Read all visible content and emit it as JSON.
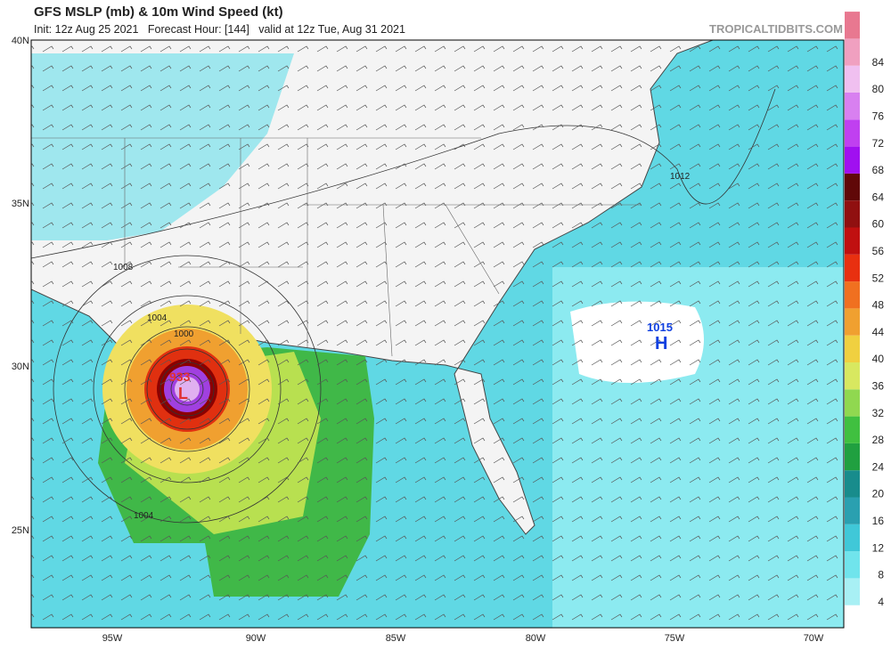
{
  "header": {
    "title": "GFS MSLP (mb) & 10m Wind Speed (kt)",
    "subtitle": "Init: 12z Aug 25 2021   Forecast Hour: [144]   valid at 12z Tue, Aug 31 2021",
    "site": "TROPICALTIDBITS.COM"
  },
  "map": {
    "lat_labels": [
      "40N",
      "35N",
      "30N",
      "25N"
    ],
    "lon_labels": [
      "95W",
      "90W",
      "85W",
      "80W",
      "75W",
      "70W"
    ],
    "isobar_labels": [
      "1012",
      "1008",
      "1004",
      "1000",
      "1004"
    ],
    "low": {
      "pressure": "933",
      "symbol": "L"
    },
    "high": {
      "pressure": "1015",
      "symbol": "H"
    }
  },
  "colorbar": {
    "ticks": [
      4,
      8,
      12,
      16,
      20,
      24,
      28,
      32,
      36,
      40,
      44,
      48,
      52,
      56,
      60,
      64,
      68,
      72,
      76,
      80,
      84
    ]
  }
}
